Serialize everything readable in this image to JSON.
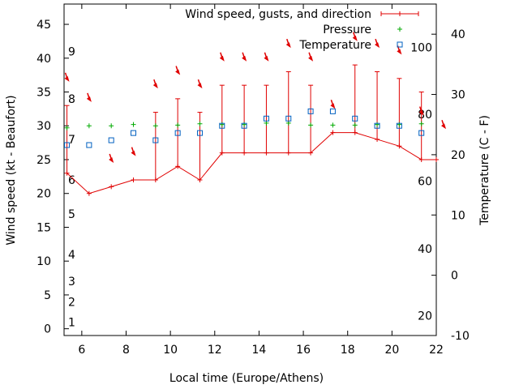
{
  "chart_data": {
    "type": "line",
    "title": "",
    "xlabel": "Local time (Europe/Athens)",
    "ylabel": "Wind speed (kt - Beaufort)",
    "y2label": "Temperature (C - F)",
    "xlim": [
      5.2,
      22
    ],
    "ylim": [
      -1,
      48
    ],
    "y2lim": [
      -10,
      45
    ],
    "x_ticks": [
      6,
      8,
      10,
      12,
      14,
      16,
      18,
      20,
      22
    ],
    "y_ticks": [
      0,
      5,
      10,
      15,
      20,
      25,
      30,
      35,
      40,
      45
    ],
    "y2_ticks": [
      -10,
      0,
      10,
      20,
      30,
      40
    ],
    "grid": false,
    "legend_position": "top-right",
    "legend": [
      "Wind speed, gusts, and direction",
      "Pressure",
      "Temperature"
    ],
    "beaufort_labels": [
      {
        "label": "1",
        "kt": 1
      },
      {
        "label": "2",
        "kt": 4
      },
      {
        "label": "3",
        "kt": 7
      },
      {
        "label": "4",
        "kt": 11
      },
      {
        "label": "5",
        "kt": 17
      },
      {
        "label": "6",
        "kt": 22
      },
      {
        "label": "7",
        "kt": 28
      },
      {
        "label": "8",
        "kt": 34
      },
      {
        "label": "9",
        "kt": 41
      }
    ],
    "fahrenheit_labels": [
      {
        "label": "20",
        "c": -6.7
      },
      {
        "label": "40",
        "c": 4.4
      },
      {
        "label": "60",
        "c": 15.6
      },
      {
        "label": "80",
        "c": 26.7
      },
      {
        "label": "100",
        "c": 37.8
      }
    ],
    "series": [
      {
        "name": "Wind speed, gusts, and direction",
        "color": "#e00000",
        "x": [
          5.33,
          6.33,
          7.33,
          8.33,
          9.33,
          10.33,
          11.33,
          12.33,
          13.33,
          14.33,
          15.33,
          16.33,
          17.33,
          18.33,
          19.33,
          20.33,
          21.33,
          22
        ],
        "speed": [
          23,
          20,
          21,
          22,
          22,
          24,
          22,
          26,
          26,
          26,
          26,
          26,
          29,
          29,
          28,
          27,
          25,
          25
        ],
        "gust": [
          33,
          20,
          21,
          22,
          32,
          34,
          32,
          36,
          36,
          36,
          38,
          36,
          29,
          39,
          38,
          37,
          35,
          25
        ]
      },
      {
        "name": "Pressure",
        "color": "#00aa00",
        "x": [
          5.33,
          6.33,
          7.33,
          8.33,
          9.33,
          10.33,
          11.33,
          12.33,
          13.33,
          14.33,
          15.33,
          16.33,
          17.33,
          18.33,
          19.33,
          20.33,
          21.33
        ],
        "values": [
          29.7,
          30.0,
          30.0,
          30.2,
          30.0,
          30.1,
          30.3,
          30.2,
          30.2,
          30.4,
          30.4,
          30.1,
          30.1,
          30.1,
          30.2,
          30.2,
          30.3
        ]
      },
      {
        "name": "Temperature",
        "color": "#0060c0",
        "x": [
          5.33,
          6.33,
          7.33,
          8.33,
          9.33,
          10.33,
          11.33,
          12.33,
          13.33,
          14.33,
          15.33,
          16.33,
          17.33,
          18.33,
          19.33,
          20.33,
          21.33
        ],
        "values": [
          21.6,
          21.6,
          22.4,
          23.6,
          22.4,
          23.6,
          23.6,
          24.8,
          24.8,
          26.0,
          26.0,
          27.2,
          27.2,
          26.0,
          24.8,
          24.8,
          23.6
        ]
      }
    ],
    "direction_arrows": {
      "color": "#e00000",
      "x": [
        5.33,
        6.33,
        7.33,
        8.33,
        9.33,
        10.33,
        11.33,
        12.33,
        13.33,
        14.33,
        15.33,
        16.33,
        17.33,
        18.33,
        19.33,
        20.33,
        21.33,
        22.33
      ],
      "y": [
        37,
        34,
        25,
        26,
        36,
        38,
        36,
        40,
        40,
        40,
        42,
        40,
        33,
        43,
        42,
        41,
        32,
        30
      ]
    }
  }
}
